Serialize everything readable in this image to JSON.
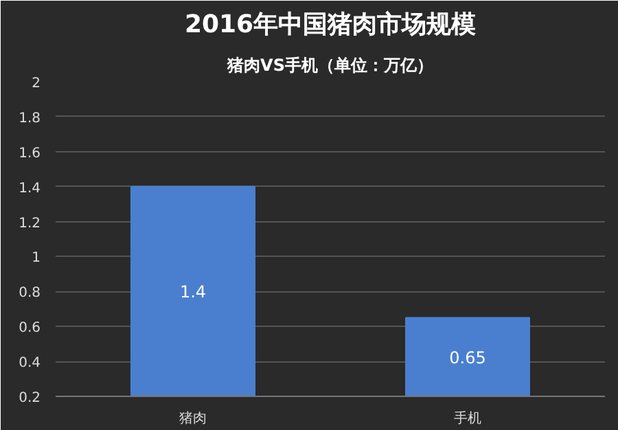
{
  "chart_data": {
    "type": "bar",
    "title": "2016年中国猪肉市场规模",
    "subtitle": "猪肉VS手机（单位：万亿）",
    "categories": [
      "猪肉",
      "手机"
    ],
    "values": [
      1.4,
      0.65
    ],
    "color": "#4a7fcf",
    "ylim": [
      0.2,
      2
    ],
    "yticks": [
      0.2,
      0.4,
      0.6,
      0.8,
      1,
      1.2,
      1.4,
      1.6,
      1.8,
      2
    ],
    "grid": "y",
    "data_labels": true
  }
}
